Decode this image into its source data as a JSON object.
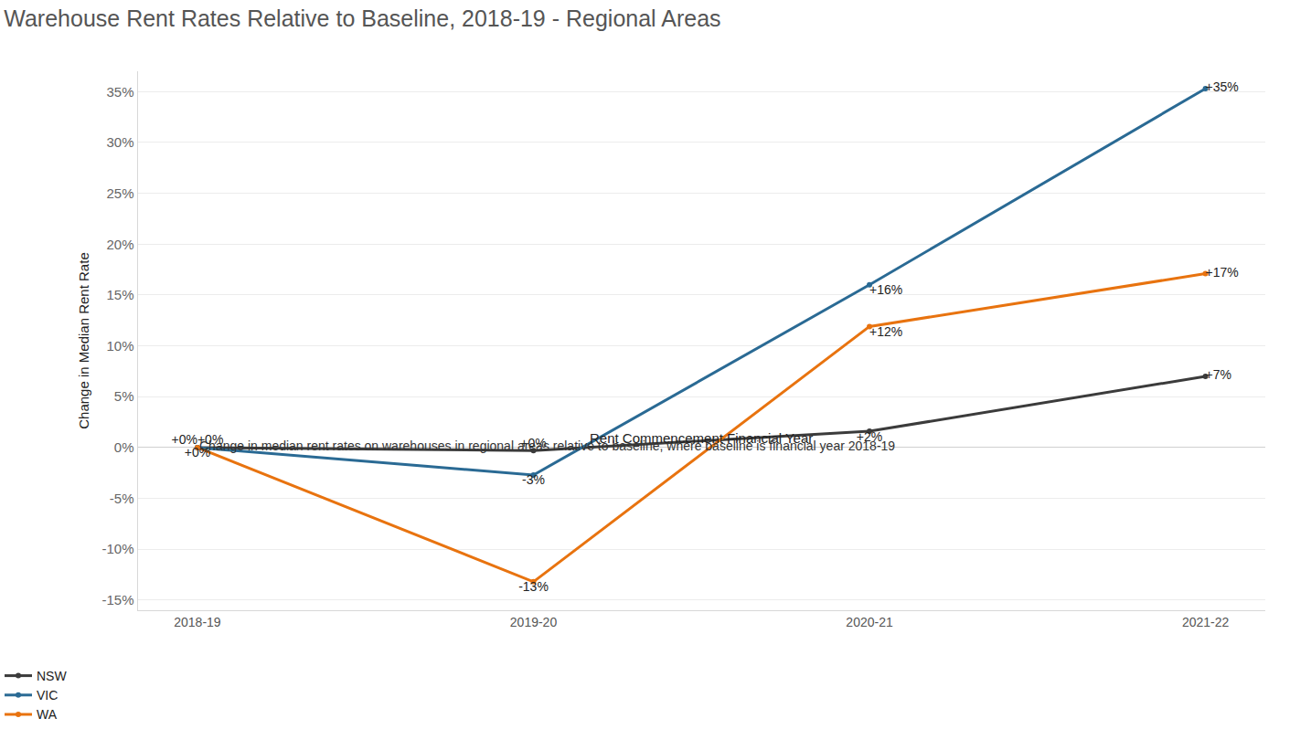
{
  "chart_data": {
    "type": "line",
    "title": "Warehouse Rent Rates Relative to Baseline, 2018-19 - Regional Areas",
    "xlabel": "Rent Commencement Financial Year",
    "ylabel": "Change in Median Rent Rate",
    "caption": "Change in median rent rates on warehouses in regional areas relative to baseline, where baseline is financial year 2018-19",
    "categories": [
      "2018-19",
      "2019-20",
      "2020-21",
      "2021-22"
    ],
    "series": [
      {
        "name": "NSW",
        "color": "#3b3b3b",
        "values": [
          0,
          -0.3,
          1.6,
          7.0
        ],
        "value_labels": [
          "+0%",
          "+0%",
          "+2%",
          "+7%"
        ]
      },
      {
        "name": "VIC",
        "color": "#2a6a94",
        "values": [
          0,
          -2.7,
          16.0,
          35.3
        ],
        "value_labels": [
          "+0%",
          "-3%",
          "+16%",
          "+35%"
        ]
      },
      {
        "name": "WA",
        "color": "#e8730f",
        "values": [
          0,
          -13.2,
          11.9,
          17.1
        ],
        "value_labels": [
          "+0%",
          "-13%",
          "+12%",
          "+17%"
        ]
      }
    ],
    "ylim": [
      -16,
      37
    ],
    "yticks": [
      {
        "value": -15,
        "label": "-15%"
      },
      {
        "value": -10,
        "label": "-10%"
      },
      {
        "value": -5,
        "label": "-5%"
      },
      {
        "value": 0,
        "label": "0%"
      },
      {
        "value": 5,
        "label": "5%"
      },
      {
        "value": 10,
        "label": "10%"
      },
      {
        "value": 15,
        "label": "15%"
      },
      {
        "value": 20,
        "label": "20%"
      },
      {
        "value": 25,
        "label": "25%"
      },
      {
        "value": 30,
        "label": "30%"
      },
      {
        "value": 35,
        "label": "35%"
      }
    ],
    "grid": true,
    "data_labels": true,
    "legend": "bottom left",
    "marker": "circle"
  }
}
